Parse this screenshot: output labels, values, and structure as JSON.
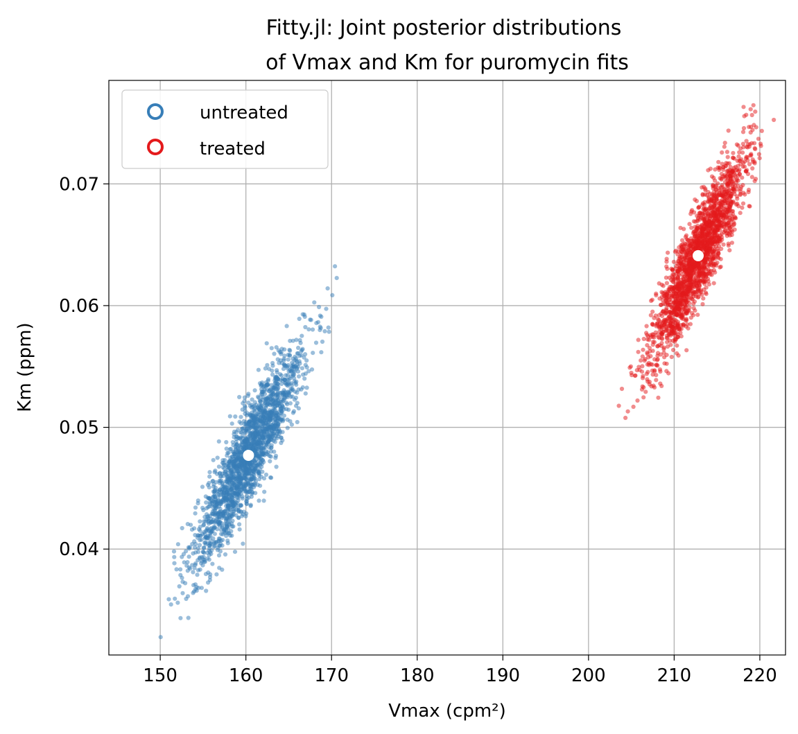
{
  "chart_data": {
    "type": "scatter",
    "title_lines": [
      "Fitty.jl: Joint posterior distributions",
      "of Vmax and Km for puromycin fits"
    ],
    "xlabel": "Vmax (cpm²)",
    "ylabel": "Km (ppm)",
    "xlim": [
      144,
      223
    ],
    "ylim": [
      0.0313,
      0.0785
    ],
    "xticks": [
      150,
      160,
      170,
      180,
      190,
      200,
      210,
      220
    ],
    "xtick_labels": [
      "150",
      "160",
      "170",
      "180",
      "190",
      "200",
      "210",
      "220"
    ],
    "yticks": [
      0.04,
      0.05,
      0.06,
      0.07
    ],
    "ytick_labels": [
      "0.04",
      "0.05",
      "0.06",
      "0.07"
    ],
    "grid": true,
    "legend_position": "upper-left",
    "series": [
      {
        "name": "untreated",
        "color": "#377eb8",
        "center": [
          160.3,
          0.0477
        ],
        "sd": [
          3.2,
          0.0045
        ],
        "correlation": 0.9,
        "n_samples": 2000,
        "marker": "dot"
      },
      {
        "name": "treated",
        "color": "#e41a1c",
        "center": [
          212.8,
          0.0641
        ],
        "sd": [
          2.8,
          0.0042
        ],
        "correlation": 0.9,
        "n_samples": 2000,
        "marker": "dot"
      }
    ],
    "point_estimates": [
      {
        "series": "untreated",
        "x": 160.3,
        "y": 0.0477,
        "color": "#ffffff"
      },
      {
        "series": "treated",
        "x": 212.8,
        "y": 0.0641,
        "color": "#ffffff"
      }
    ]
  }
}
